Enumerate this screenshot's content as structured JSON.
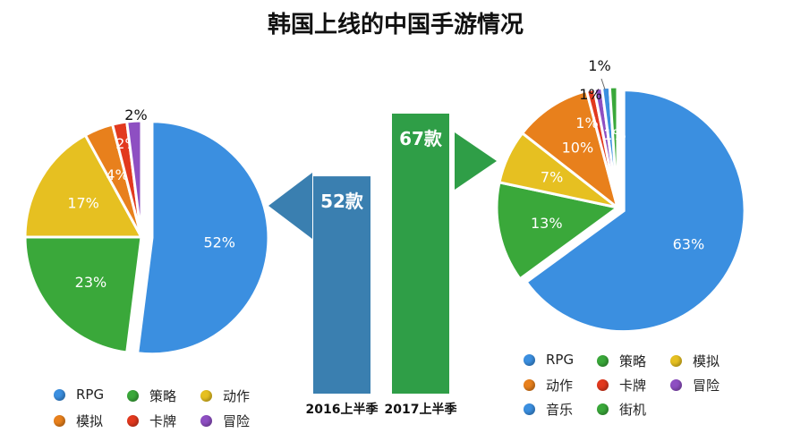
{
  "title": "韩国上线的中国手游情况",
  "chart_data": [
    {
      "type": "pie",
      "title": "",
      "slices": [
        {
          "label": "RPG",
          "value": 52,
          "text": "52%",
          "color": "#3b8fe0"
        },
        {
          "label": "策略",
          "value": 23,
          "text": "23%",
          "color": "#3aa83a"
        },
        {
          "label": "动作",
          "value": 17,
          "text": "17%",
          "color": "#e6c021"
        },
        {
          "label": "模拟",
          "value": 4,
          "text": "4%",
          "color": "#e8801c"
        },
        {
          "label": "卡牌",
          "value": 2,
          "text": "2%",
          "color": "#e2391e"
        },
        {
          "label": "冒险",
          "value": 2,
          "text": "2%",
          "color": "#8e4fc2"
        }
      ]
    },
    {
      "type": "bar",
      "title": "",
      "categories": [
        "2016上半季",
        "2017上半季"
      ],
      "values": [
        52,
        67
      ],
      "value_labels": [
        "52款",
        "67款"
      ],
      "colors": [
        "#3a7fb0",
        "#2f9e47"
      ]
    },
    {
      "type": "pie",
      "title": "",
      "slices": [
        {
          "label": "RPG",
          "value": 63,
          "text": "63%",
          "color": "#3b8fe0"
        },
        {
          "label": "策略",
          "value": 13,
          "text": "13%",
          "color": "#3aa83a"
        },
        {
          "label": "模拟",
          "value": 7,
          "text": "7%",
          "color": "#e6c021"
        },
        {
          "label": "动作",
          "value": 10,
          "text": "10%",
          "color": "#e8801c"
        },
        {
          "label": "卡牌",
          "value": 1,
          "text": "1%",
          "color": "#e2391e"
        },
        {
          "label": "冒险",
          "value": 1,
          "text": "1%",
          "color": "#8e4fc2"
        },
        {
          "label": "音乐",
          "value": 1,
          "text": "1%",
          "color": "#3b8fe0"
        },
        {
          "label": "街机",
          "value": 1,
          "text": "1%",
          "color": "#3aa83a"
        }
      ]
    }
  ],
  "legend_left": [
    {
      "label": "RPG",
      "color": "#3b8fe0"
    },
    {
      "label": "策略",
      "color": "#3aa83a"
    },
    {
      "label": "动作",
      "color": "#e6c021"
    },
    {
      "label": "模拟",
      "color": "#e8801c"
    },
    {
      "label": "卡牌",
      "color": "#e2391e"
    },
    {
      "label": "冒险",
      "color": "#8e4fc2"
    }
  ],
  "legend_right": [
    {
      "label": "RPG",
      "color": "#3b8fe0"
    },
    {
      "label": "策略",
      "color": "#3aa83a"
    },
    {
      "label": "模拟",
      "color": "#e6c021"
    },
    {
      "label": "动作",
      "color": "#e8801c"
    },
    {
      "label": "卡牌",
      "color": "#e2391e"
    },
    {
      "label": "冒险",
      "color": "#8e4fc2"
    },
    {
      "label": "音乐",
      "color": "#3b8fe0"
    },
    {
      "label": "街机",
      "color": "#3aa83a"
    }
  ]
}
